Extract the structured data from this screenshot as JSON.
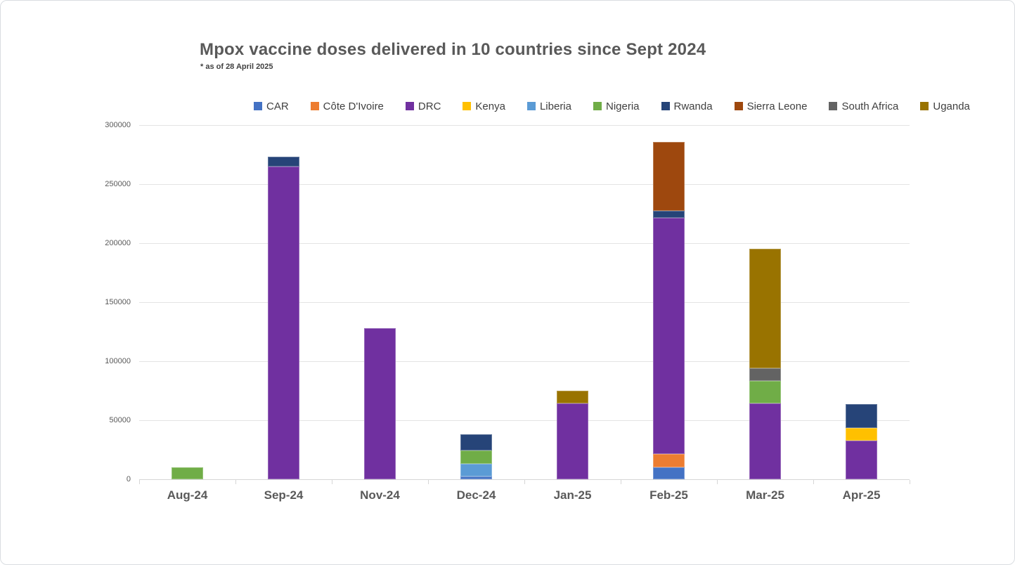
{
  "title": "Mpox vaccine doses delivered in 10 countries since Sept 2024",
  "subtitle": "* as of 28 April 2025",
  "colors": {
    "title_text": "#595959",
    "axis_text": "#595959",
    "gridline": "#e4e4e4",
    "card_border": "#d9dde1"
  },
  "chart_data": {
    "type": "bar",
    "stacked": true,
    "title": "Mpox vaccine doses delivered in 10 countries since Sept 2024",
    "subtitle": "* as of 28 April 2025",
    "xlabel": "",
    "ylabel": "",
    "categories": [
      "Aug-24",
      "Sep-24",
      "Nov-24",
      "Dec-24",
      "Jan-25",
      "Feb-25",
      "Mar-25",
      "Apr-25"
    ],
    "series": [
      {
        "name": "CAR",
        "color": "#4472C4",
        "values": [
          0,
          0,
          0,
          2500,
          0,
          10000,
          0,
          0
        ]
      },
      {
        "name": "Côte D'Ivoire",
        "color": "#ED7D31",
        "values": [
          0,
          0,
          0,
          0,
          0,
          11500,
          0,
          0
        ]
      },
      {
        "name": "DRC",
        "color": "#7030A0",
        "values": [
          0,
          265000,
          128000,
          0,
          64500,
          200000,
          64500,
          33000
        ]
      },
      {
        "name": "Kenya",
        "color": "#FFC000",
        "values": [
          0,
          0,
          0,
          0,
          0,
          0,
          0,
          10500
        ]
      },
      {
        "name": "Liberia",
        "color": "#5B9BD5",
        "values": [
          0,
          0,
          0,
          10500,
          0,
          0,
          0,
          0
        ]
      },
      {
        "name": "Nigeria",
        "color": "#70AD47",
        "values": [
          10000,
          0,
          0,
          11500,
          0,
          0,
          19000,
          0
        ]
      },
      {
        "name": "Rwanda",
        "color": "#264478",
        "values": [
          0,
          8000,
          0,
          13500,
          0,
          6000,
          0,
          20000
        ]
      },
      {
        "name": "Sierra Leone",
        "color": "#9E480E",
        "values": [
          0,
          0,
          0,
          0,
          0,
          58500,
          0,
          0
        ]
      },
      {
        "name": "South Africa",
        "color": "#636363",
        "values": [
          0,
          0,
          0,
          0,
          0,
          0,
          10500,
          0
        ]
      },
      {
        "name": "Uganda",
        "color": "#997300",
        "values": [
          0,
          0,
          0,
          0,
          10500,
          0,
          101000,
          0
        ]
      }
    ],
    "monthly_totals": [
      10000,
      273000,
      128000,
      38000,
      75000,
      286000,
      195000,
      63500
    ],
    "ylim": [
      0,
      300000
    ],
    "yticks": [
      0,
      50000,
      100000,
      150000,
      200000,
      250000,
      300000
    ],
    "grid": true,
    "legend_position": "top",
    "stacking_order": "alphabetical bottom-to-top"
  }
}
